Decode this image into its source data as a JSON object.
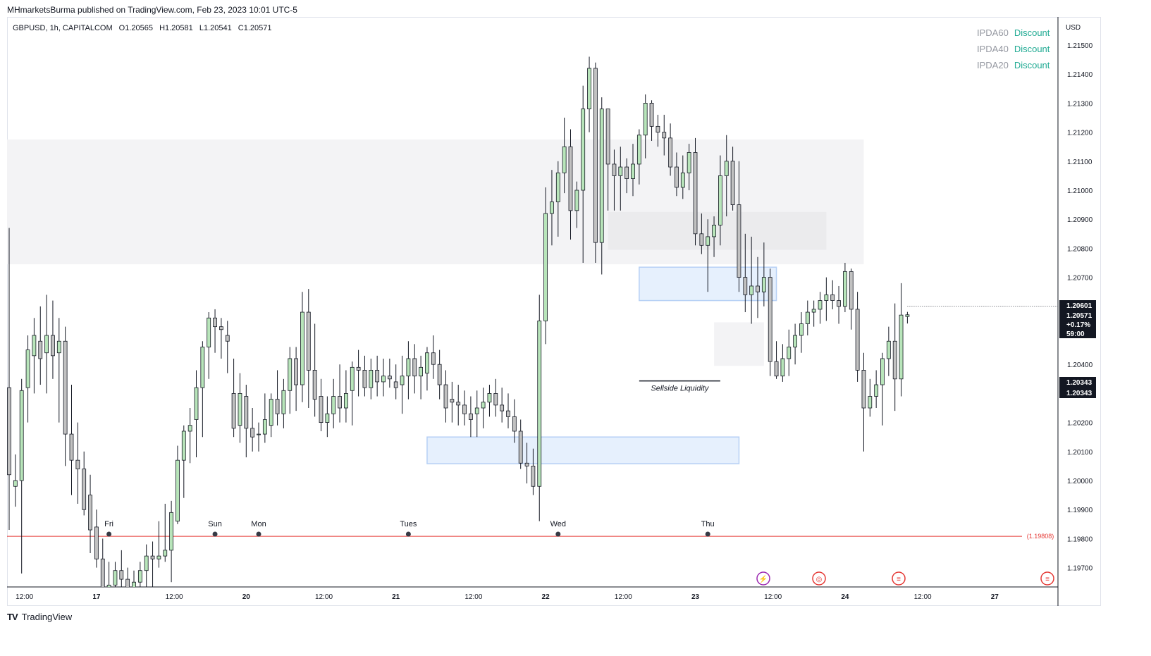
{
  "header": {
    "published": "MHmarketsBurma published on TradingView.com, Feb 23, 2023 10:01 UTC-5"
  },
  "symbol": {
    "name": "GBPUSD, 1h, CAPITALCOM",
    "open": "O1.20565",
    "high": "H1.20581",
    "low": "L1.20541",
    "close": "C1.20571"
  },
  "ipda": [
    {
      "label": "IPDA60",
      "value": "Discount"
    },
    {
      "label": "IPDA40",
      "value": "Discount"
    },
    {
      "label": "IPDA20",
      "value": "Discount"
    }
  ],
  "footer": {
    "brand": "TradingView"
  },
  "colors": {
    "bull": "#b8e5ba",
    "bear": "#c1c1c1",
    "wick": "#131722",
    "fvg": "#e6f0fd",
    "fvg_border": "#b6d0f5",
    "zone": "#f3f3f5",
    "zone_dark": "#ebebed",
    "red_line": "#e53935",
    "discount": "#22ab94"
  },
  "chart_data": {
    "type": "candlestick",
    "currency": "USD",
    "y_ticks": [
      1.215,
      1.214,
      1.213,
      1.212,
      1.211,
      1.21,
      1.209,
      1.208,
      1.207,
      1.204,
      1.202,
      1.201,
      1.2,
      1.199,
      1.198,
      1.197
    ],
    "y_tick_labels": [
      "1.21500",
      "1.21400",
      "1.21300",
      "1.21200",
      "1.21100",
      "1.21000",
      "1.20900",
      "1.20800",
      "1.20700",
      "1.20400",
      "1.20200",
      "1.20100",
      "1.20000",
      "1.19900",
      "1.19800",
      "1.19700"
    ],
    "ylim": [
      1.1966,
      1.2158
    ],
    "x_ticks": [
      {
        "label": "12:00",
        "bar": 2
      },
      {
        "label": "17",
        "bar": 14
      },
      {
        "label": "12:00",
        "bar": 26
      },
      {
        "label": "20",
        "bar": 38
      },
      {
        "label": "12:00",
        "bar": 50
      },
      {
        "label": "21",
        "bar": 62
      },
      {
        "label": "12:00",
        "bar": 74
      },
      {
        "label": "22",
        "bar": 86
      },
      {
        "label": "12:00",
        "bar": 98
      },
      {
        "label": "23",
        "bar": 110
      },
      {
        "label": "12:00",
        "bar": 122
      },
      {
        "label": "24",
        "bar": 134
      },
      {
        "label": "12:00",
        "bar": 146
      },
      {
        "label": "27",
        "bar": 158
      }
    ],
    "session_markers": [
      {
        "label": "Fri",
        "bar": 16
      },
      {
        "label": "Sun",
        "bar": 33
      },
      {
        "label": "Mon",
        "bar": 40
      },
      {
        "label": "Tues",
        "bar": 64
      },
      {
        "label": "Wed",
        "bar": 88
      },
      {
        "label": "Thu",
        "bar": 112
      }
    ],
    "price_labels": [
      {
        "text": "1.20601",
        "price": 1.20601
      },
      {
        "text": "1.20571",
        "price": 1.20571
      },
      {
        "text": "+0.17%",
        "price": 1.20571
      },
      {
        "text": "59:00",
        "price": 1.20571
      },
      {
        "text": "1.20343",
        "price": 1.20343
      },
      {
        "text": "1.20343",
        "price": 1.20343
      }
    ],
    "horizontal_line": {
      "price": 1.19808,
      "label": "(1.19808)"
    },
    "current_price": 1.20601,
    "sellside_liquidity": {
      "label": "Sellside Liquidity",
      "price": 1.20343,
      "bar_start": 101,
      "bar_end": 114
    },
    "zones": [
      {
        "name": "premium-zone",
        "price_top": 1.21175,
        "price_bottom": 1.20745,
        "bar_start": -1,
        "bar_end": 137,
        "kind": "zone"
      },
      {
        "name": "inner-zone",
        "price_top": 1.20925,
        "price_bottom": 1.20795,
        "bar_start": 96,
        "bar_end": 131,
        "kind": "zone_dark"
      },
      {
        "name": "fvg-upper",
        "price_top": 1.20735,
        "price_bottom": 1.2062,
        "bar_start": 101,
        "bar_end": 123,
        "kind": "fvg"
      },
      {
        "name": "fvg-lower",
        "price_top": 1.2015,
        "price_bottom": 1.20058,
        "bar_start": 67,
        "bar_end": 117,
        "kind": "fvg"
      },
      {
        "name": "small-zone",
        "price_top": 1.20545,
        "price_bottom": 1.20395,
        "bar_start": 113,
        "bar_end": 121,
        "kind": "zone"
      }
    ],
    "candles": [
      [
        1.2032,
        1.2087,
        1.1983,
        1.2002
      ],
      [
        1.1998,
        1.2009,
        1.1991,
        1.2
      ],
      [
        1.2,
        1.2035,
        1.1968,
        1.2031
      ],
      [
        1.2032,
        1.205,
        1.202,
        1.2045
      ],
      [
        1.2043,
        1.2056,
        1.203,
        1.205
      ],
      [
        1.2048,
        1.206,
        1.2033,
        1.2042
      ],
      [
        1.2044,
        1.2064,
        1.203,
        1.205
      ],
      [
        1.205,
        1.2062,
        1.2035,
        1.2043
      ],
      [
        1.2044,
        1.2056,
        1.202,
        1.2048
      ],
      [
        1.2048,
        1.2053,
        1.2005,
        1.2016
      ],
      [
        1.2016,
        1.2033,
        1.1995,
        1.2007
      ],
      [
        1.2007,
        1.202,
        1.1992,
        1.2004
      ],
      [
        1.2004,
        1.201,
        1.1988,
        1.199
      ],
      [
        1.1995,
        1.2002,
        1.1975,
        1.1983
      ],
      [
        1.1984,
        1.199,
        1.197,
        1.1973
      ],
      [
        1.1973,
        1.198,
        1.1956,
        1.1961
      ],
      [
        1.1961,
        1.1972,
        1.1955,
        1.1964
      ],
      [
        1.1964,
        1.1972,
        1.1957,
        1.1969
      ],
      [
        1.1969,
        1.1976,
        1.196,
        1.1966
      ],
      [
        1.1966,
        1.197,
        1.1952,
        1.1958
      ],
      [
        1.1958,
        1.1969,
        1.1955,
        1.1965
      ],
      [
        1.1965,
        1.1972,
        1.196,
        1.1969
      ],
      [
        1.1969,
        1.1978,
        1.196,
        1.1974
      ],
      [
        1.1974,
        1.1979,
        1.1961,
        1.1973
      ],
      [
        1.1973,
        1.1986,
        1.197,
        1.1974
      ],
      [
        1.1974,
        1.1992,
        1.1972,
        1.1976
      ],
      [
        1.1976,
        1.1993,
        1.1965,
        1.1989
      ],
      [
        1.1986,
        1.2012,
        1.1985,
        1.2007
      ],
      [
        1.2007,
        1.2019,
        1.1994,
        1.2017
      ],
      [
        1.2017,
        1.2025,
        1.2006,
        1.2019
      ],
      [
        1.2021,
        1.2038,
        1.2008,
        1.2032
      ],
      [
        1.2032,
        1.2048,
        1.2015,
        1.2046
      ],
      [
        1.2046,
        1.2058,
        1.2035,
        1.2056
      ],
      [
        1.2056,
        1.2059,
        1.2044,
        1.2053
      ],
      [
        1.2053,
        1.2056,
        1.2042,
        1.2052
      ],
      [
        1.205,
        1.2055,
        1.2037,
        1.2048
      ],
      [
        1.203,
        1.2042,
        1.2015,
        1.2018
      ],
      [
        1.2019,
        1.2037,
        1.2013,
        1.203
      ],
      [
        1.2029,
        1.2033,
        1.2008,
        1.2018
      ],
      [
        1.2018,
        1.2025,
        1.201,
        1.2015
      ],
      [
        1.2016,
        1.202,
        1.201,
        1.2016
      ],
      [
        1.2016,
        1.203,
        1.2013,
        1.2021
      ],
      [
        1.2019,
        1.203,
        1.2015,
        1.2028
      ],
      [
        1.2028,
        1.2038,
        1.2019,
        1.2023
      ],
      [
        1.2023,
        1.2035,
        1.2018,
        1.2031
      ],
      [
        1.2031,
        1.2046,
        1.2023,
        1.2042
      ],
      [
        1.2042,
        1.2046,
        1.2024,
        1.2033
      ],
      [
        1.2033,
        1.2065,
        1.2027,
        1.2058
      ],
      [
        1.2058,
        1.2066,
        1.2025,
        1.2038
      ],
      [
        1.2038,
        1.2054,
        1.2022,
        1.2028
      ],
      [
        1.2029,
        1.2035,
        1.2017,
        1.202
      ],
      [
        1.202,
        1.2029,
        1.2015,
        1.2023
      ],
      [
        1.2023,
        1.2035,
        1.2018,
        1.2029
      ],
      [
        1.2029,
        1.204,
        1.202,
        1.2025
      ],
      [
        1.2025,
        1.2038,
        1.202,
        1.203
      ],
      [
        1.2031,
        1.2041,
        1.2019,
        1.2039
      ],
      [
        1.2039,
        1.2045,
        1.2029,
        1.2038
      ],
      [
        1.2038,
        1.2043,
        1.2029,
        1.2032
      ],
      [
        1.2032,
        1.2042,
        1.2028,
        1.2038
      ],
      [
        1.2038,
        1.2043,
        1.2029,
        1.2034
      ],
      [
        1.2034,
        1.2042,
        1.2029,
        1.2036
      ],
      [
        1.2036,
        1.2042,
        1.2032,
        1.2035
      ],
      [
        1.2034,
        1.204,
        1.2028,
        1.2032
      ],
      [
        1.2033,
        1.2043,
        1.2023,
        1.2036
      ],
      [
        1.2036,
        1.2048,
        1.2028,
        1.2042
      ],
      [
        1.2042,
        1.2047,
        1.203,
        1.2036
      ],
      [
        1.2036,
        1.2043,
        1.2028,
        1.2039
      ],
      [
        1.2037,
        1.2046,
        1.2031,
        1.2044
      ],
      [
        1.2044,
        1.205,
        1.2035,
        1.204
      ],
      [
        1.204,
        1.2045,
        1.2028,
        1.2033
      ],
      [
        1.2033,
        1.2038,
        1.202,
        1.2025
      ],
      [
        1.2028,
        1.2034,
        1.202,
        1.2027
      ],
      [
        1.2027,
        1.2033,
        1.2019,
        1.2026
      ],
      [
        1.2026,
        1.2031,
        1.2019,
        1.2023
      ],
      [
        1.2023,
        1.2029,
        1.2015,
        1.2021
      ],
      [
        1.2023,
        1.2031,
        1.2015,
        1.2025
      ],
      [
        1.2025,
        1.2032,
        1.2018,
        1.2027
      ],
      [
        1.2027,
        1.2033,
        1.2022,
        1.203
      ],
      [
        1.203,
        1.2035,
        1.2022,
        1.2026
      ],
      [
        1.2026,
        1.2032,
        1.202,
        1.2024
      ],
      [
        1.2024,
        1.203,
        1.2018,
        1.2022
      ],
      [
        1.2022,
        1.2028,
        1.2013,
        1.2017
      ],
      [
        1.2017,
        1.2021,
        1.2004,
        1.2006
      ],
      [
        1.2006,
        1.2013,
        1.1999,
        1.2005
      ],
      [
        1.2005,
        1.2011,
        1.1995,
        1.1998
      ],
      [
        1.1998,
        1.2064,
        1.1986,
        1.2055
      ],
      [
        1.2055,
        1.2101,
        1.2047,
        1.2092
      ],
      [
        1.2092,
        1.2107,
        1.2081,
        1.2096
      ],
      [
        1.2096,
        1.211,
        1.2084,
        1.2106
      ],
      [
        1.2106,
        1.2125,
        1.2099,
        1.2115
      ],
      [
        1.2115,
        1.2121,
        1.2083,
        1.2093
      ],
      [
        1.2093,
        1.2103,
        1.2087,
        1.21
      ],
      [
        1.21,
        1.2136,
        1.2075,
        1.2128
      ],
      [
        1.2128,
        1.2146,
        1.212,
        1.2142
      ],
      [
        1.2142,
        1.2144,
        1.2075,
        1.2082
      ],
      [
        1.2082,
        1.2132,
        1.2071,
        1.2128
      ],
      [
        1.2128,
        1.2128,
        1.2093,
        1.2109
      ],
      [
        1.2109,
        1.2114,
        1.2093,
        1.2105
      ],
      [
        1.2105,
        1.2115,
        1.2093,
        1.2108
      ],
      [
        1.2108,
        1.2111,
        1.2099,
        1.2104
      ],
      [
        1.2104,
        1.2116,
        1.2098,
        1.2109
      ],
      [
        1.2109,
        1.2121,
        1.2102,
        1.2119
      ],
      [
        1.2119,
        1.2133,
        1.2111,
        1.213
      ],
      [
        1.213,
        1.2131,
        1.2117,
        1.2122
      ],
      [
        1.2122,
        1.2126,
        1.2115,
        1.212
      ],
      [
        1.212,
        1.2126,
        1.2112,
        1.2118
      ],
      [
        1.2118,
        1.2123,
        1.2105,
        1.2108
      ],
      [
        1.2108,
        1.2113,
        1.2098,
        1.2101
      ],
      [
        1.2101,
        1.2112,
        1.2097,
        1.2106
      ],
      [
        1.2106,
        1.2116,
        1.21,
        1.2113
      ],
      [
        1.2113,
        1.2118,
        1.2081,
        1.2085
      ],
      [
        1.2085,
        1.2092,
        1.2078,
        1.2081
      ],
      [
        1.2081,
        1.209,
        1.2065,
        1.2084
      ],
      [
        1.2084,
        1.2091,
        1.2077,
        1.2088
      ],
      [
        1.2088,
        1.2112,
        1.2081,
        1.2105
      ],
      [
        1.2105,
        1.2119,
        1.2091,
        1.211
      ],
      [
        1.211,
        1.2115,
        1.2093,
        1.2095
      ],
      [
        1.2095,
        1.211,
        1.2065,
        1.207
      ],
      [
        1.207,
        1.2085,
        1.2058,
        1.2064
      ],
      [
        1.2064,
        1.2084,
        1.2054,
        1.2067
      ],
      [
        1.2067,
        1.2077,
        1.2056,
        1.2065
      ],
      [
        1.2065,
        1.2082,
        1.206,
        1.207
      ],
      [
        1.207,
        1.2073,
        1.2036,
        1.2041
      ],
      [
        1.2041,
        1.2048,
        1.2035,
        1.2036
      ],
      [
        1.2036,
        1.2047,
        1.2034,
        1.2042
      ],
      [
        1.2042,
        1.2052,
        1.2036,
        1.2046
      ],
      [
        1.2046,
        1.2054,
        1.204,
        1.205
      ],
      [
        1.205,
        1.2058,
        1.2044,
        1.2054
      ],
      [
        1.2054,
        1.2062,
        1.205,
        1.2058
      ],
      [
        1.2058,
        1.2062,
        1.2053,
        1.2059
      ],
      [
        1.2059,
        1.2065,
        1.2054,
        1.2062
      ],
      [
        1.2062,
        1.207,
        1.2055,
        1.2064
      ],
      [
        1.2064,
        1.2069,
        1.2059,
        1.2062
      ],
      [
        1.2062,
        1.2067,
        1.2054,
        1.206
      ],
      [
        1.206,
        1.2075,
        1.2058,
        1.2072
      ],
      [
        1.2072,
        1.2073,
        1.2052,
        1.2059
      ],
      [
        1.2059,
        1.2065,
        1.2034,
        1.2038
      ],
      [
        1.2038,
        1.2044,
        1.201,
        1.2025
      ],
      [
        1.2025,
        1.2035,
        1.2022,
        1.2029
      ],
      [
        1.2029,
        1.2038,
        1.2025,
        1.2033
      ],
      [
        1.2033,
        1.2044,
        1.2019,
        1.2042
      ],
      [
        1.2042,
        1.2053,
        1.2036,
        1.2048
      ],
      [
        1.2048,
        1.2061,
        1.2024,
        1.2035
      ],
      [
        1.2035,
        1.2068,
        1.2029,
        1.2057
      ],
      [
        1.20565,
        1.20581,
        1.20541,
        1.20571
      ]
    ]
  }
}
